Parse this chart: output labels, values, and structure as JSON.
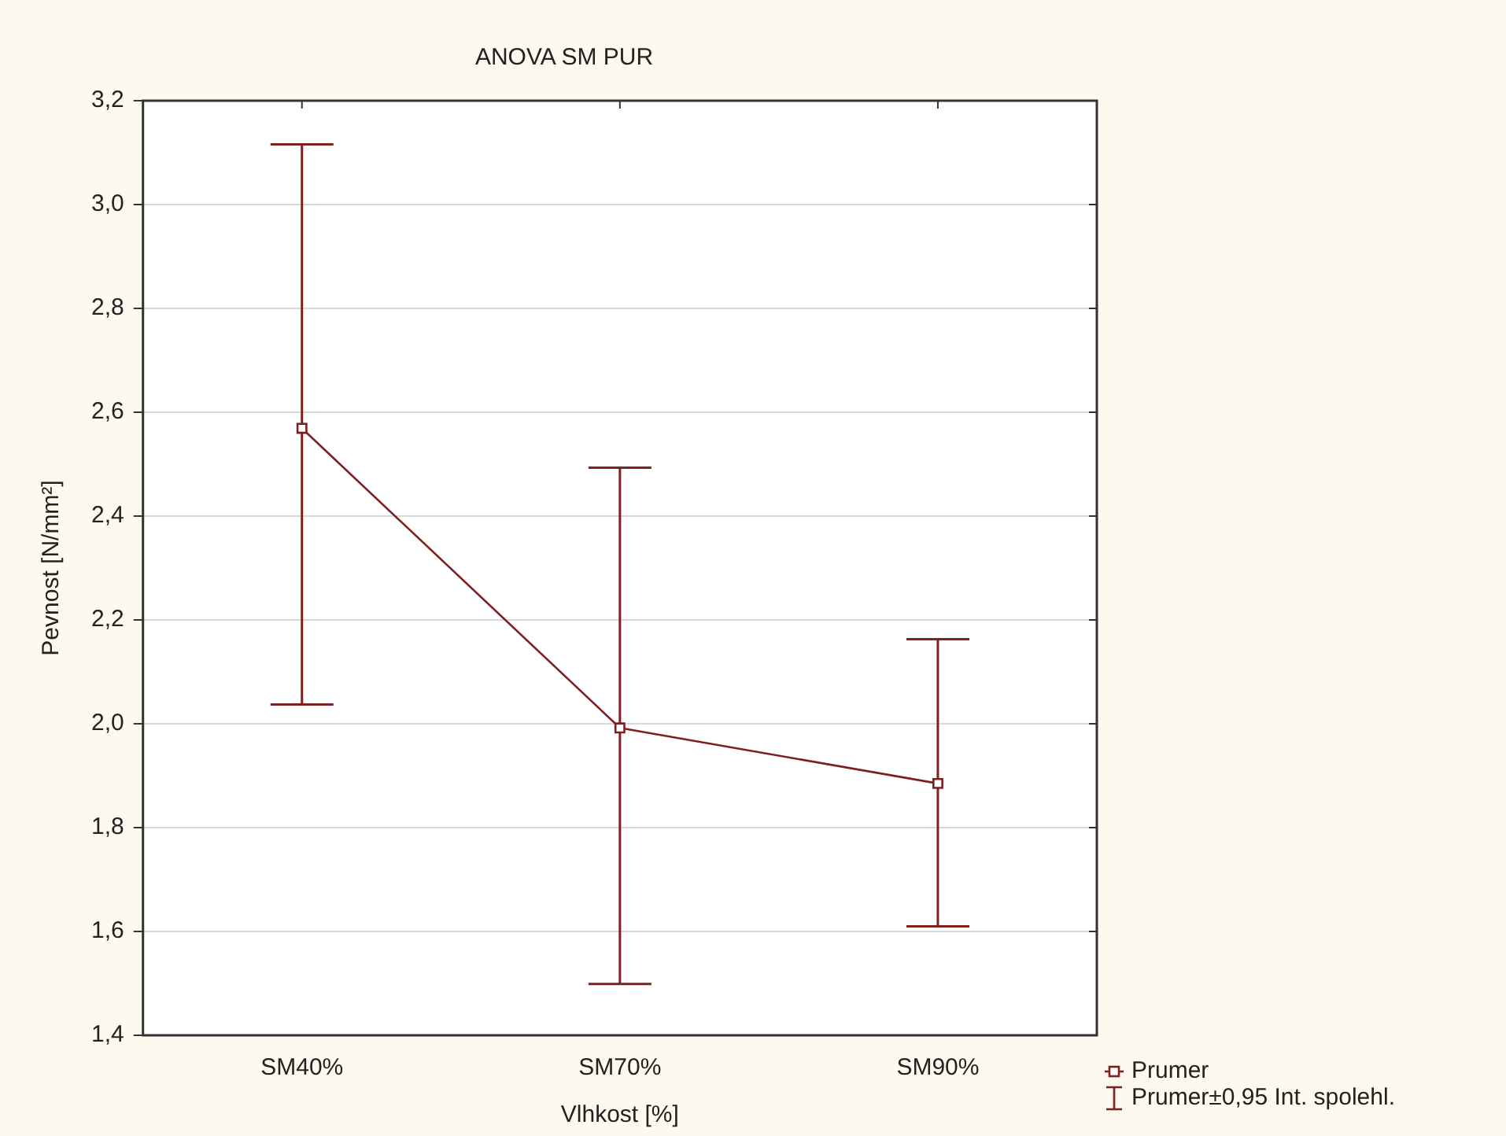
{
  "chart_data": {
    "type": "line",
    "title": "ANOVA SM PUR",
    "xlabel": "Vlhkost [%]",
    "ylabel": "Pevnost [N/mm²]",
    "categories": [
      "SM40%",
      "SM70%",
      "SM90%"
    ],
    "series": [
      {
        "name": "Prumer",
        "color": "#7f1f1f",
        "values": [
          2.569,
          1.992,
          1.885
        ],
        "errors": [
          [
            2.037,
            3.116
          ],
          [
            1.499,
            2.493
          ],
          [
            1.61,
            2.163
          ]
        ]
      }
    ],
    "annotations": [
      "Prumer±0,95 Int. spolehl."
    ],
    "ylim": [
      1.4,
      3.2
    ],
    "yticks": [
      {
        "value": 1.4,
        "label": "1,4"
      },
      {
        "value": 1.6,
        "label": "1,6"
      },
      {
        "value": 1.8,
        "label": "1,8"
      },
      {
        "value": 2.0,
        "label": "2,0"
      },
      {
        "value": 2.2,
        "label": "2,2"
      },
      {
        "value": 2.4,
        "label": "2,4"
      },
      {
        "value": 2.6,
        "label": "2,6"
      },
      {
        "value": 2.8,
        "label": "2,8"
      },
      {
        "value": 3.0,
        "label": "3,0"
      },
      {
        "value": 3.2,
        "label": "3,2"
      }
    ],
    "grid": "y",
    "legend": "bottom right",
    "marker": "square",
    "line_style": "solid"
  }
}
